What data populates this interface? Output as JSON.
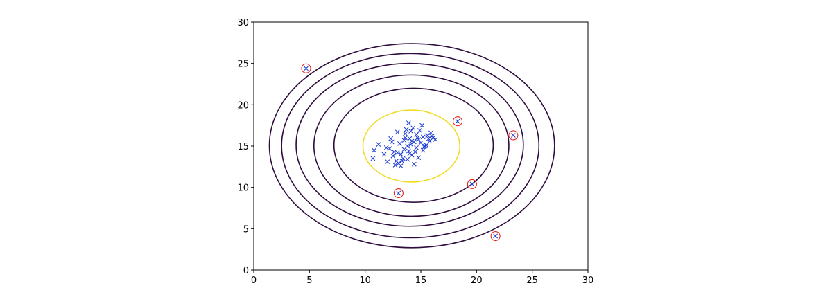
{
  "chart_data": {
    "type": "scatter",
    "xlim": [
      0,
      30
    ],
    "ylim": [
      0,
      30
    ],
    "xticks": [
      0,
      5,
      10,
      15,
      20,
      25,
      30
    ],
    "yticks": [
      0,
      5,
      10,
      15,
      20,
      25,
      30
    ],
    "grid": false,
    "contours": [
      {
        "color": "#f2dc26",
        "cx": 14.15,
        "cy": 15.0,
        "rx": 4.35,
        "ry": 4.35
      },
      {
        "color": "#2e0d3e",
        "cx": 14.35,
        "cy": 15.1,
        "rx": 7.15,
        "ry": 6.9
      },
      {
        "color": "#2e0d3e",
        "cx": 14.15,
        "cy": 15.05,
        "rx": 8.75,
        "ry": 8.55
      },
      {
        "color": "#2e0d3e",
        "cx": 14.0,
        "cy": 15.15,
        "rx": 10.2,
        "ry": 9.85
      },
      {
        "color": "#2e0d3e",
        "cx": 14.05,
        "cy": 15.05,
        "rx": 11.55,
        "ry": 11.15
      },
      {
        "color": "#2e0d3e",
        "cx": 14.2,
        "cy": 15.05,
        "rx": 12.8,
        "ry": 12.35
      }
    ],
    "series": [
      {
        "color": "#1f3fd6",
        "marker": "x",
        "x": [
          14.1,
          13.5,
          14.8,
          15.2,
          12.9,
          13.8,
          14.4,
          15.6,
          13.2,
          14.0,
          14.6,
          15.0,
          13.6,
          12.5,
          14.9,
          15.8,
          13.9,
          14.3,
          13.1,
          14.7,
          15.3,
          12.8,
          13.4,
          14.2,
          16.0,
          15.5,
          13.7,
          14.5,
          12.2,
          11.7,
          11.2,
          10.8,
          10.7,
          12.0,
          13.0,
          12.7,
          13.3,
          14.1,
          15.1,
          15.9,
          16.3,
          14.8,
          13.6,
          12.4,
          13.9,
          14.4,
          15.4,
          12.9,
          14.0,
          13.2,
          12.6,
          15.7,
          14.6,
          13.5,
          16.1,
          11.9,
          12.3,
          14.2,
          15.2,
          13.8
        ],
        "y": [
          15.2,
          14.6,
          15.8,
          16.1,
          14.2,
          15.0,
          15.5,
          16.3,
          14.0,
          15.9,
          14.8,
          15.4,
          16.5,
          13.8,
          16.9,
          15.6,
          14.4,
          17.2,
          15.3,
          16.0,
          14.9,
          13.2,
          13.5,
          13.9,
          16.2,
          15.1,
          17.0,
          14.3,
          14.7,
          14.0,
          15.2,
          14.5,
          13.5,
          13.1,
          12.9,
          12.7,
          13.2,
          16.8,
          17.5,
          16.6,
          15.8,
          13.6,
          16.0,
          15.5,
          17.8,
          12.8,
          15.0,
          16.7,
          14.1,
          12.6,
          14.3,
          15.9,
          16.4,
          15.7,
          16.0,
          14.8,
          15.9,
          15.6,
          14.5,
          13.4
        ]
      },
      {
        "color": "#1f3fd6",
        "marker": "x",
        "ring_color": "#e8231c",
        "x": [
          4.7,
          18.3,
          23.3,
          19.6,
          13.0,
          21.7
        ],
        "y": [
          24.4,
          18.0,
          16.3,
          10.4,
          9.3,
          4.1
        ]
      }
    ]
  }
}
